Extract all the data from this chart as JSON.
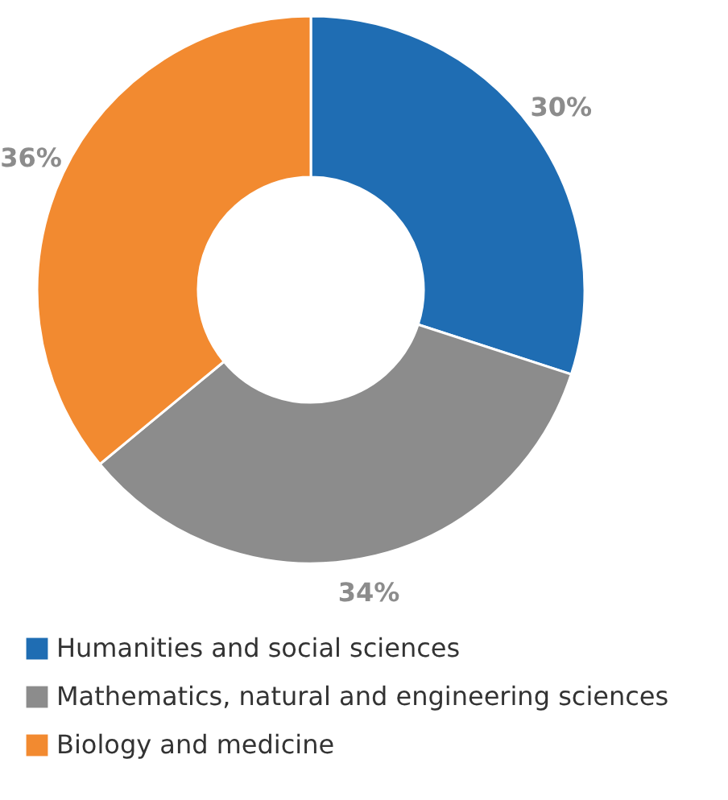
{
  "chart_data": {
    "type": "donut",
    "categories": [
      "Humanities and social sciences",
      "Mathematics, natural and engineering sciences",
      "Biology and medicine"
    ],
    "values": [
      30,
      34,
      36
    ],
    "colors": [
      "#1f6db3",
      "#8c8c8c",
      "#f28a30"
    ],
    "value_labels": [
      "30%",
      "34%",
      "36%"
    ],
    "legend": "bottom"
  }
}
